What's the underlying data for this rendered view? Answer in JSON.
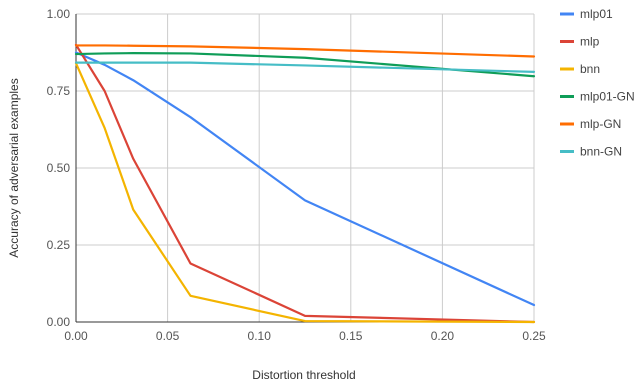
{
  "chart_data": {
    "type": "line",
    "title": "",
    "xlabel": "Distortion threshold",
    "ylabel": "Accuracy of adversarial examples",
    "x": [
      0.0,
      0.015625,
      0.03125,
      0.0625,
      0.125,
      0.25
    ],
    "xlim": [
      0,
      0.25
    ],
    "ylim": [
      0,
      1
    ],
    "x_ticks": [
      0,
      0.05,
      0.1,
      0.15,
      0.2,
      0.25
    ],
    "x_tick_labels": [
      "0.00",
      "0.05",
      "0.10",
      "0.15",
      "0.20",
      "0.25"
    ],
    "y_ticks": [
      0,
      0.25,
      0.5,
      0.75,
      1.0
    ],
    "y_tick_labels": [
      "0.00",
      "0.25",
      "0.50",
      "0.75",
      "1.00"
    ],
    "grid": true,
    "legend_position": "right",
    "series": [
      {
        "name": "mlp01",
        "color": "#4285f4",
        "values": [
          0.875,
          0.835,
          0.785,
          0.665,
          0.395,
          0.055
        ]
      },
      {
        "name": "mlp",
        "color": "#db4437",
        "values": [
          0.9,
          0.75,
          0.53,
          0.19,
          0.02,
          0.0
        ]
      },
      {
        "name": "bnn",
        "color": "#f4b400",
        "values": [
          0.84,
          0.63,
          0.365,
          0.085,
          0.003,
          0.0
        ]
      },
      {
        "name": "mlp01-GN",
        "color": "#0f9d58",
        "values": [
          0.87,
          0.872,
          0.873,
          0.872,
          0.858,
          0.798
        ]
      },
      {
        "name": "mlp-GN",
        "color": "#ff6d01",
        "values": [
          0.898,
          0.898,
          0.897,
          0.895,
          0.886,
          0.862
        ]
      },
      {
        "name": "bnn-GN",
        "color": "#46bdc6",
        "values": [
          0.842,
          0.842,
          0.842,
          0.842,
          0.833,
          0.812
        ]
      }
    ]
  }
}
